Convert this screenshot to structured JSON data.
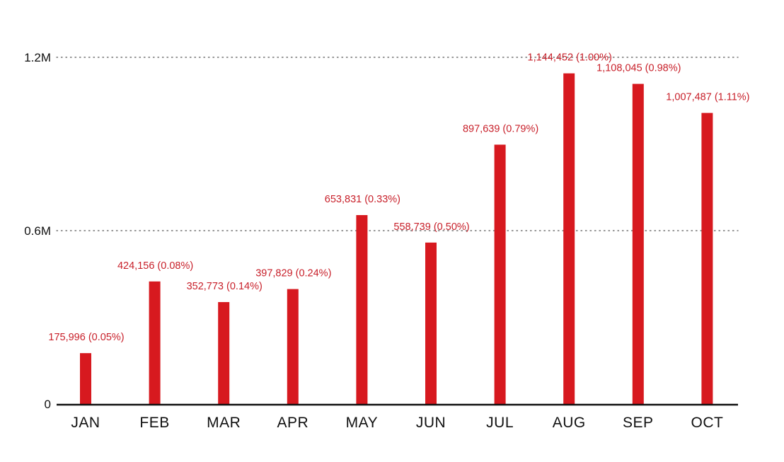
{
  "chart_data": {
    "type": "bar",
    "title": "",
    "xlabel": "",
    "ylabel": "",
    "categories": [
      "JAN",
      "FEB",
      "MAR",
      "APR",
      "MAY",
      "JUN",
      "JUL",
      "AUG",
      "SEP",
      "OCT"
    ],
    "values": [
      175996,
      424156,
      352773,
      397829,
      653831,
      558739,
      897639,
      1144452,
      1108045,
      1007487
    ],
    "data_labels": [
      "175,996 (0.05%)",
      "424,156 (0.08%)",
      "352,773 (0.14%)",
      "397,829 (0.24%)",
      "653,831 (0.33%)",
      "558,739 (0.50%)",
      "897,639 (0.79%)",
      "1,144,452 (1.00%)",
      "1,108,045 (0.98%)",
      "1,007,487 (1.11%)"
    ],
    "ylim": [
      0,
      1200000
    ],
    "yticks": [
      {
        "value": 0,
        "label": "0"
      },
      {
        "value": 600000,
        "label": "0.6M"
      },
      {
        "value": 1200000,
        "label": "1.2M"
      }
    ],
    "grid": "dotted horizontal at non-zero ticks",
    "legend": "none",
    "colors": {
      "bar": "#d7191f",
      "label": "#c8202a",
      "axis": "#111111",
      "grid": "#555555"
    }
  }
}
